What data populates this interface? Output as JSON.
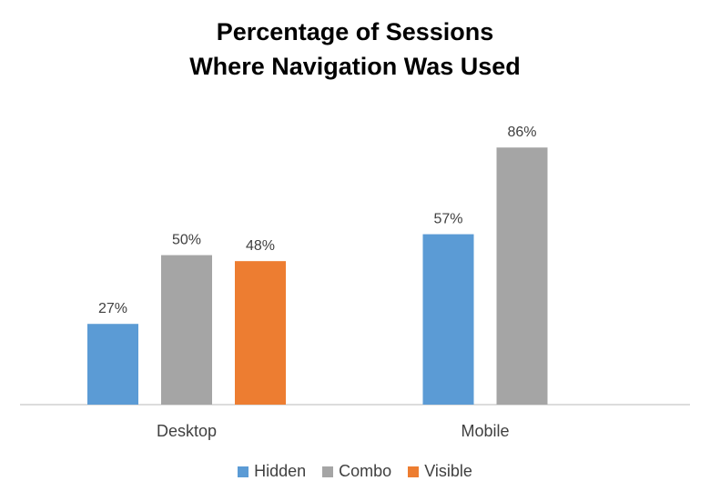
{
  "chart_data": {
    "type": "bar",
    "title": [
      "Percentage of Sessions",
      "Where Navigation Was Used"
    ],
    "xlabel": "",
    "ylabel": "",
    "ylim": [
      0,
      100
    ],
    "grid": false,
    "legend_position": "bottom",
    "categories": [
      "Desktop",
      "Mobile"
    ],
    "series": [
      {
        "name": "Hidden",
        "color": "#5B9BD5",
        "values": [
          27,
          57
        ],
        "labels": [
          "27%",
          "57%"
        ]
      },
      {
        "name": "Combo",
        "color": "#A5A5A5",
        "values": [
          50,
          86
        ],
        "labels": [
          "50%",
          "86%"
        ]
      },
      {
        "name": "Visible",
        "color": "#ED7D31",
        "values": [
          48,
          null
        ],
        "labels": [
          "48%",
          null
        ]
      }
    ]
  }
}
